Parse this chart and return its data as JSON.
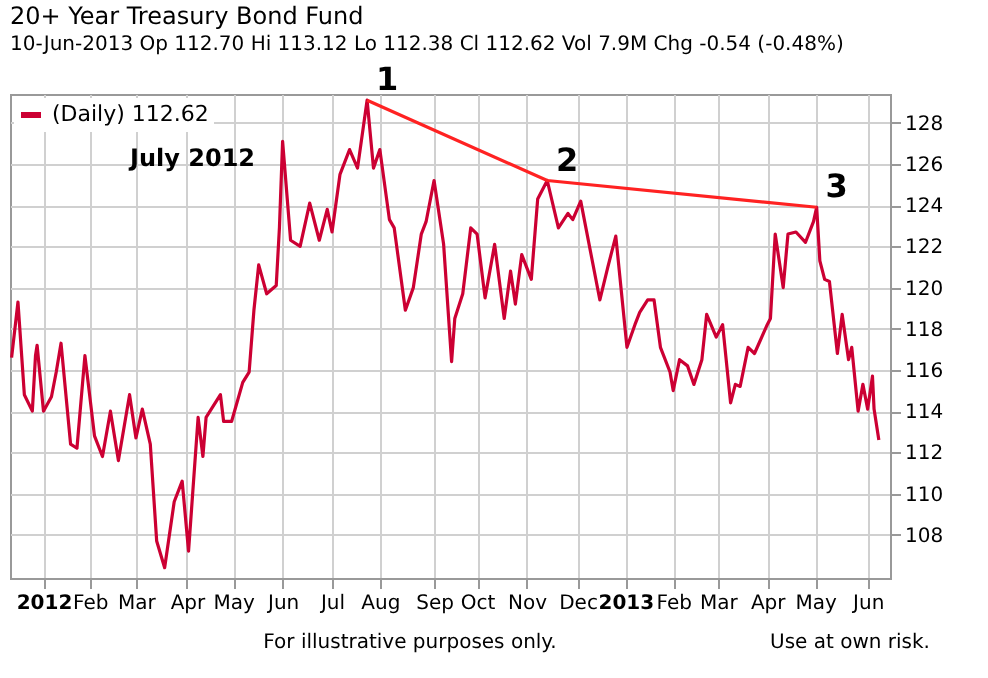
{
  "chart_data": {
    "type": "line",
    "title": "20+ Year Treasury Bond Fund",
    "subtitle": "10-Jun-2013     Op 112.70  Hi 113.12  Lo 112.38  Cl 112.62  Vol 7.9M  Chg -0.54 (-0.48%)",
    "xlim": [
      "2011-12-13",
      "2013-06-17"
    ],
    "xticks": [
      {
        "value": "2012-01-03",
        "label": "2012"
      },
      {
        "value": "2012-02-01",
        "label": "Feb"
      },
      {
        "value": "2012-03-01",
        "label": "Mar"
      },
      {
        "value": "2012-04-02",
        "label": "Apr"
      },
      {
        "value": "2012-05-01",
        "label": "May"
      },
      {
        "value": "2012-06-01",
        "label": "Jun"
      },
      {
        "value": "2012-07-02",
        "label": "Jul"
      },
      {
        "value": "2012-08-01",
        "label": "Aug"
      },
      {
        "value": "2012-09-04",
        "label": "Sep"
      },
      {
        "value": "2012-10-01",
        "label": "Oct"
      },
      {
        "value": "2012-11-01",
        "label": "Nov"
      },
      {
        "value": "2012-12-03",
        "label": "Dec"
      },
      {
        "value": "2013-01-02",
        "label": "2013"
      },
      {
        "value": "2013-02-01",
        "label": "Feb"
      },
      {
        "value": "2013-03-01",
        "label": "Mar"
      },
      {
        "value": "2013-04-01",
        "label": "Apr"
      },
      {
        "value": "2013-05-01",
        "label": "May"
      },
      {
        "value": "2013-06-03",
        "label": "Jun"
      }
    ],
    "ylim": [
      105.9,
      129.4
    ],
    "yticks": [
      108,
      110,
      112,
      114,
      116,
      118,
      120,
      122,
      124,
      126,
      128
    ],
    "grid": true,
    "legend": "top left",
    "marker": "none",
    "line_style": "solid",
    "series": [
      {
        "name": "(Daily) 112.62",
        "color": "#cc0033",
        "x": [
          "2011-12-14",
          "2011-12-18",
          "2011-12-22",
          "2011-12-27",
          "2011-12-29",
          "2011-12-30",
          "2012-01-03",
          "2012-01-08",
          "2012-01-11",
          "2012-01-14",
          "2012-01-20",
          "2012-01-24",
          "2012-01-29",
          "2012-02-04",
          "2012-02-09",
          "2012-02-14",
          "2012-02-19",
          "2012-02-26",
          "2012-03-01",
          "2012-03-05",
          "2012-03-10",
          "2012-03-14",
          "2012-03-19",
          "2012-03-25",
          "2012-03-30",
          "2012-04-03",
          "2012-04-09",
          "2012-04-12",
          "2012-04-14",
          "2012-04-23",
          "2012-04-25",
          "2012-04-30",
          "2012-05-07",
          "2012-05-11",
          "2012-05-14",
          "2012-05-17",
          "2012-05-22",
          "2012-05-28",
          "2012-05-30",
          "2012-06-01",
          "2012-06-06",
          "2012-06-12",
          "2012-06-18",
          "2012-06-24",
          "2012-06-29",
          "2012-07-02",
          "2012-07-07",
          "2012-07-13",
          "2012-07-18",
          "2012-07-24",
          "2012-07-28",
          "2012-08-01",
          "2012-08-07",
          "2012-08-10",
          "2012-08-17",
          "2012-08-22",
          "2012-08-27",
          "2012-08-30",
          "2012-09-04",
          "2012-09-10",
          "2012-09-15",
          "2012-09-17",
          "2012-09-22",
          "2012-09-27",
          "2012-10-01",
          "2012-10-06",
          "2012-10-12",
          "2012-10-18",
          "2012-10-22",
          "2012-10-25",
          "2012-10-29",
          "2012-11-04",
          "2012-11-08",
          "2012-11-14",
          "2012-11-21",
          "2012-11-27",
          "2012-11-30",
          "2012-12-05",
          "2012-12-12",
          "2012-12-17",
          "2012-12-22",
          "2012-12-27",
          "2013-01-03",
          "2013-01-08",
          "2013-01-11",
          "2013-01-16",
          "2013-01-20",
          "2013-01-24",
          "2013-01-30",
          "2013-02-01",
          "2013-02-05",
          "2013-02-10",
          "2013-02-14",
          "2013-02-19",
          "2013-02-22",
          "2013-02-28",
          "2013-03-04",
          "2013-03-09",
          "2013-03-12",
          "2013-03-15",
          "2013-03-20",
          "2013-03-24",
          "2013-04-01",
          "2013-04-03",
          "2013-04-06",
          "2013-04-11",
          "2013-04-14",
          "2013-04-19",
          "2013-04-25",
          "2013-04-30",
          "2013-05-02",
          "2013-05-04",
          "2013-05-07",
          "2013-05-10",
          "2013-05-15",
          "2013-05-18",
          "2013-05-22",
          "2013-05-24",
          "2013-05-28",
          "2013-05-31",
          "2013-06-03",
          "2013-06-06",
          "2013-06-07",
          "2013-06-10"
        ],
        "values": [
          116.6,
          119.3,
          114.8,
          114.0,
          116.7,
          117.2,
          114.0,
          114.7,
          115.9,
          117.3,
          112.4,
          112.2,
          116.7,
          112.8,
          111.8,
          114.0,
          111.6,
          114.8,
          112.7,
          114.1,
          112.4,
          107.7,
          106.4,
          109.6,
          110.6,
          107.2,
          113.7,
          111.8,
          113.7,
          114.8,
          113.5,
          113.5,
          115.4,
          115.9,
          118.9,
          121.1,
          119.7,
          120.1,
          122.9,
          127.1,
          122.3,
          122.0,
          124.1,
          122.3,
          123.8,
          122.7,
          125.5,
          126.7,
          125.8,
          129.1,
          125.8,
          126.7,
          123.3,
          122.9,
          118.9,
          120.0,
          122.6,
          123.2,
          125.2,
          122.1,
          116.4,
          118.5,
          119.7,
          122.9,
          122.6,
          119.5,
          122.1,
          118.5,
          120.8,
          119.2,
          121.6,
          120.4,
          124.3,
          125.2,
          122.9,
          123.6,
          123.3,
          124.2,
          121.4,
          119.4,
          121.0,
          122.5,
          117.1,
          118.2,
          118.8,
          119.4,
          119.4,
          117.1,
          115.9,
          115.0,
          116.5,
          116.2,
          115.3,
          116.5,
          118.7,
          117.6,
          118.2,
          114.4,
          115.3,
          115.2,
          117.1,
          116.8,
          118.2,
          118.5,
          122.6,
          120.0,
          122.6,
          122.7,
          122.2,
          123.2,
          123.9,
          121.3,
          120.4,
          120.3,
          116.8,
          118.7,
          116.5,
          117.1,
          114.0,
          115.3,
          114.1,
          115.7,
          114.1,
          112.6
        ]
      },
      {
        "color": "#ff2222",
        "x": [
          "2012-07-24",
          "2012-11-14",
          "2013-05-02"
        ],
        "values": [
          129.1,
          125.2,
          123.9
        ]
      }
    ],
    "annotations": [
      {
        "text": "1",
        "x": "2012-07-24",
        "y": 129.1
      },
      {
        "text": "2",
        "x": "2012-11-14",
        "y": 125.2
      },
      {
        "text": "3",
        "x": "2013-05-02",
        "y": 123.9
      },
      "July 2012",
      "For illustrative purposes only.",
      "Use at own risk."
    ]
  }
}
